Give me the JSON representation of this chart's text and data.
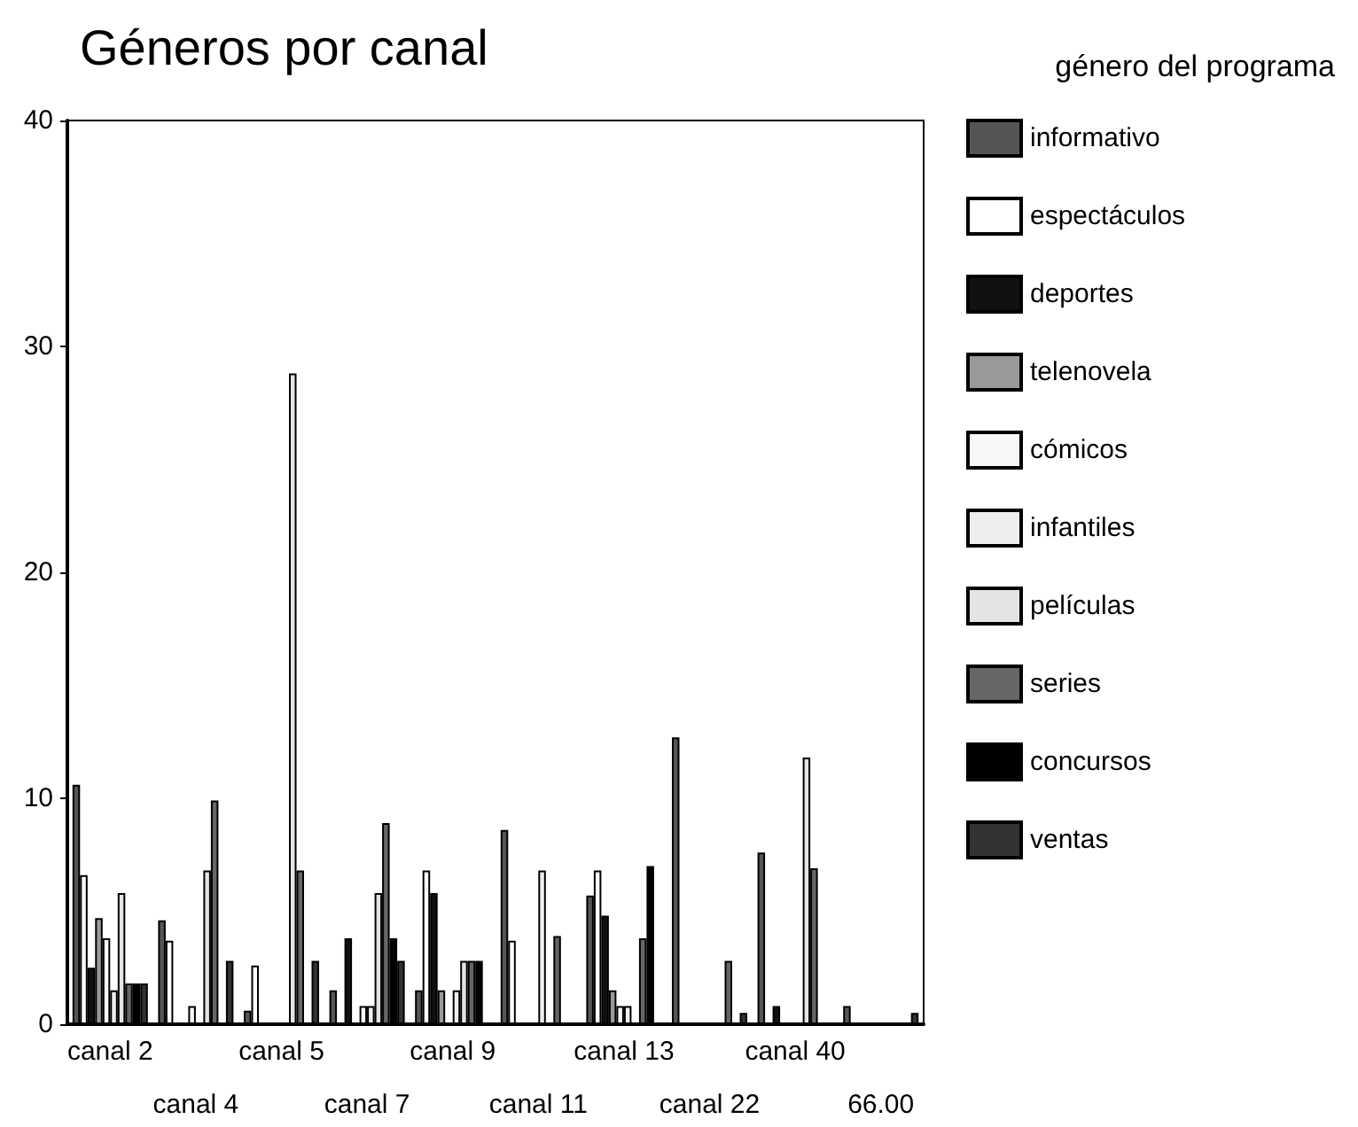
{
  "chart_data": {
    "type": "bar",
    "title": "Géneros por canal",
    "legend_title": "género del programa",
    "categories": [
      "canal 2",
      "canal 4",
      "canal 5",
      "canal 7",
      "canal 9",
      "canal 11",
      "canal 13",
      "canal 22",
      "canal 40",
      "66.00"
    ],
    "series": [
      {
        "name": "informativo",
        "color": "#555555",
        "values": [
          10.6,
          4.6,
          0.6,
          1.5,
          1.5,
          8.6,
          5.7,
          12.7,
          7.6,
          0.8
        ]
      },
      {
        "name": "espectáculos",
        "color": "#ffffff",
        "values": [
          6.6,
          3.7,
          2.6,
          null,
          6.8,
          3.7,
          6.8,
          null,
          null,
          null
        ]
      },
      {
        "name": "deportes",
        "color": "#111111",
        "values": [
          2.5,
          null,
          null,
          3.8,
          5.8,
          null,
          4.8,
          null,
          0.8,
          null
        ]
      },
      {
        "name": "telenovela",
        "color": "#999999",
        "values": [
          4.7,
          null,
          null,
          null,
          1.5,
          null,
          1.5,
          null,
          null,
          null
        ]
      },
      {
        "name": "cómicos",
        "color": "#f7f7f7",
        "values": [
          3.8,
          0.8,
          null,
          0.8,
          null,
          null,
          0.8,
          null,
          null,
          null
        ]
      },
      {
        "name": "infantiles",
        "color": "#eeeeee",
        "values": [
          1.5,
          null,
          null,
          0.8,
          1.5,
          6.8,
          0.8,
          null,
          null,
          null
        ]
      },
      {
        "name": "películas",
        "color": "#e4e4e4",
        "values": [
          5.8,
          6.8,
          28.8,
          5.8,
          2.8,
          null,
          null,
          null,
          11.8,
          null
        ]
      },
      {
        "name": "series",
        "color": "#666666",
        "values": [
          1.8,
          9.9,
          6.8,
          8.9,
          2.8,
          3.9,
          3.8,
          2.8,
          6.9,
          null
        ]
      },
      {
        "name": "concursos",
        "color": "#000000",
        "values": [
          1.8,
          null,
          null,
          3.8,
          2.8,
          null,
          7.0,
          null,
          null,
          null
        ]
      },
      {
        "name": "ventas",
        "color": "#333333",
        "values": [
          1.8,
          2.8,
          2.8,
          2.8,
          null,
          null,
          null,
          0.5,
          null,
          0.5
        ]
      }
    ],
    "ylim": [
      0,
      40
    ],
    "yticks": [
      0,
      10,
      20,
      30,
      40
    ],
    "grid": false,
    "legend": "right"
  }
}
